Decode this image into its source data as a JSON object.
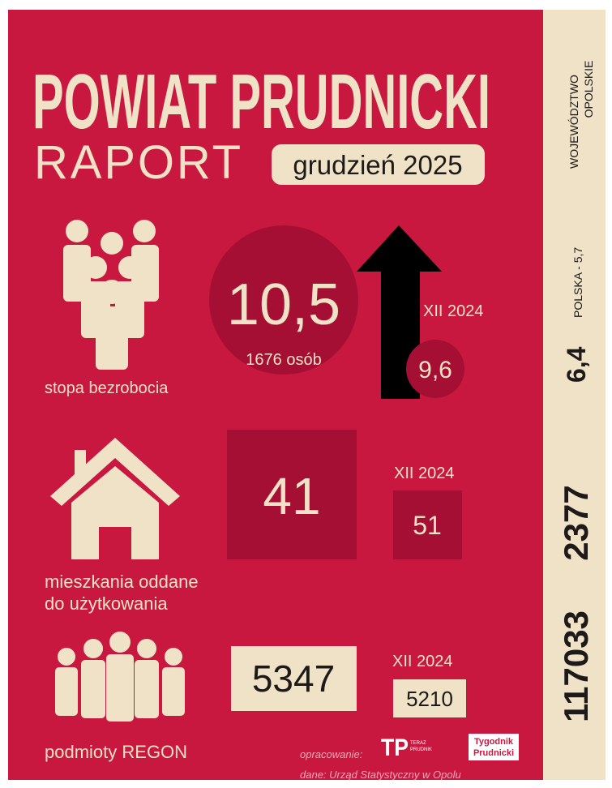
{
  "header": {
    "title": "POWIAT PRUDNICKI",
    "subtitle": "RAPORT",
    "period": "grudzień 2025"
  },
  "sections": [
    {
      "label": [
        "stopa bezrobocia"
      ],
      "value": "10,5",
      "detail": "1676 osób",
      "previous_label": "XII 2024",
      "previous_value": "9,6"
    },
    {
      "label": [
        "mieszkania oddane",
        "do użytkowania"
      ],
      "value": "41",
      "previous_label": "XII 2024",
      "previous_value": "51"
    },
    {
      "label": [
        "podmioty REGON"
      ],
      "value": "5347",
      "previous_label": "XII 2024",
      "previous_value": "5210"
    }
  ],
  "footer": {
    "prepared_by": "opracowanie:",
    "logo_tp": "TP",
    "logo_tp_small": [
      "TERAZ",
      "PRUDNIK"
    ],
    "logo_tygodnik": [
      "Tygodnik",
      "Prudnicki"
    ],
    "source": "dane: Urząd Statystyczny w Opolu"
  },
  "side": {
    "region": [
      "WOJEWÓDZTWO",
      "OPOLSKIE"
    ],
    "unemployment": "6,4",
    "national": "POLSKA - 5,7",
    "housing": "2377",
    "regon": "117033"
  }
}
